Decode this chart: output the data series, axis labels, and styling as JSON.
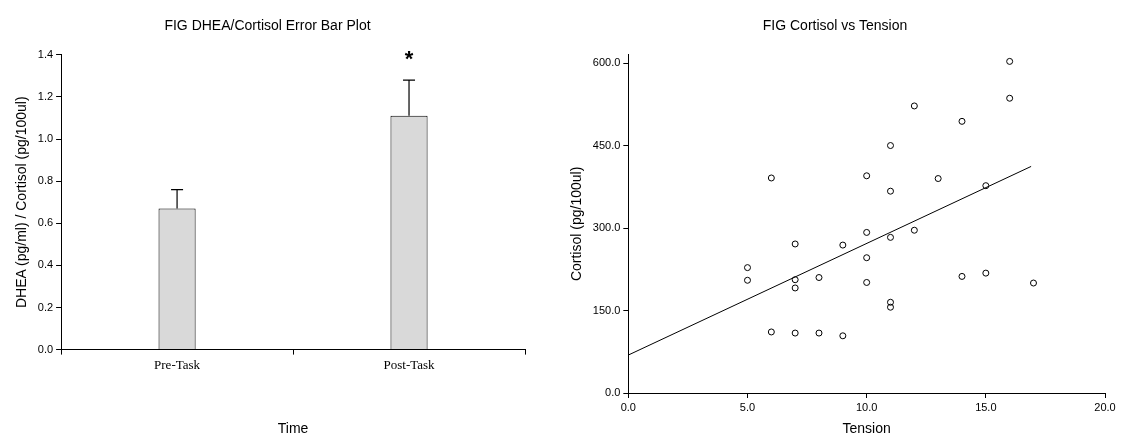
{
  "chart_data": [
    {
      "type": "bar",
      "title": "FIG DHEA/Cortisol Error Bar Plot",
      "xlabel": "Time",
      "ylabel": "DHEA (pg/ml) / Cortisol (pg/100ul)",
      "categories": [
        "Pre-Task",
        "Post-Task"
      ],
      "values": [
        0.67,
        1.11
      ],
      "color": "#d9d9d9",
      "errors": [
        [
          0.67,
          0.76
        ],
        [
          1.11,
          1.28
        ]
      ],
      "ylim": [
        0,
        1.4
      ],
      "yticks": [
        {
          "value": 0,
          "label": "0.0"
        },
        {
          "value": 0.2,
          "label": "0.2"
        },
        {
          "value": 0.4,
          "label": "0.4"
        },
        {
          "value": 0.6,
          "label": "0.6"
        },
        {
          "value": 0.8,
          "label": "0.8"
        },
        {
          "value": 1.0,
          "label": "1.0"
        },
        {
          "value": 1.2,
          "label": "1.2"
        },
        {
          "value": 1.4,
          "label": "1.4"
        }
      ],
      "annotations": [
        "*"
      ],
      "grid": false,
      "legend": false
    },
    {
      "type": "scatter",
      "title": "FIG Cortisol vs Tension",
      "xlabel": "Tension",
      "ylabel": "Cortisol (pg/100ul)",
      "series": [
        {
          "type": "scatter",
          "color": "#000000",
          "marker": "circle",
          "x": [
            5,
            5,
            6,
            6,
            7,
            7,
            7,
            7,
            8,
            8,
            9,
            9,
            10,
            10,
            10,
            10,
            11,
            11,
            11,
            11,
            11,
            12,
            12,
            13,
            14,
            14,
            15,
            15,
            16,
            16,
            17
          ],
          "values": [
            228,
            205,
            391,
            111,
            271,
            206,
            191,
            109,
            210,
            109,
            269,
            104,
            395,
            292,
            246,
            201,
            450,
            367,
            283,
            165,
            156,
            522,
            296,
            390,
            494,
            212,
            377,
            218,
            603,
            536,
            200
          ]
        },
        {
          "type": "line",
          "color": "#000000",
          "marker": "none",
          "line_style": "solid",
          "x": [
            0,
            16.9
          ],
          "values": [
            69,
            412
          ]
        }
      ],
      "xlim": [
        0,
        20
      ],
      "xticks": [
        {
          "value": 0,
          "label": "0.0"
        },
        {
          "value": 5,
          "label": "5.0"
        },
        {
          "value": 10,
          "label": "10.0"
        },
        {
          "value": 15,
          "label": "15.0"
        },
        {
          "value": 20,
          "label": "20.0"
        }
      ],
      "ylim": [
        0,
        615
      ],
      "yticks": [
        {
          "value": 0,
          "label": "0.0"
        },
        {
          "value": 150,
          "label": "150.0"
        },
        {
          "value": 300,
          "label": "300.0"
        },
        {
          "value": 450,
          "label": "450.0"
        },
        {
          "value": 600,
          "label": "600.0"
        }
      ],
      "grid": false,
      "legend": false
    }
  ]
}
